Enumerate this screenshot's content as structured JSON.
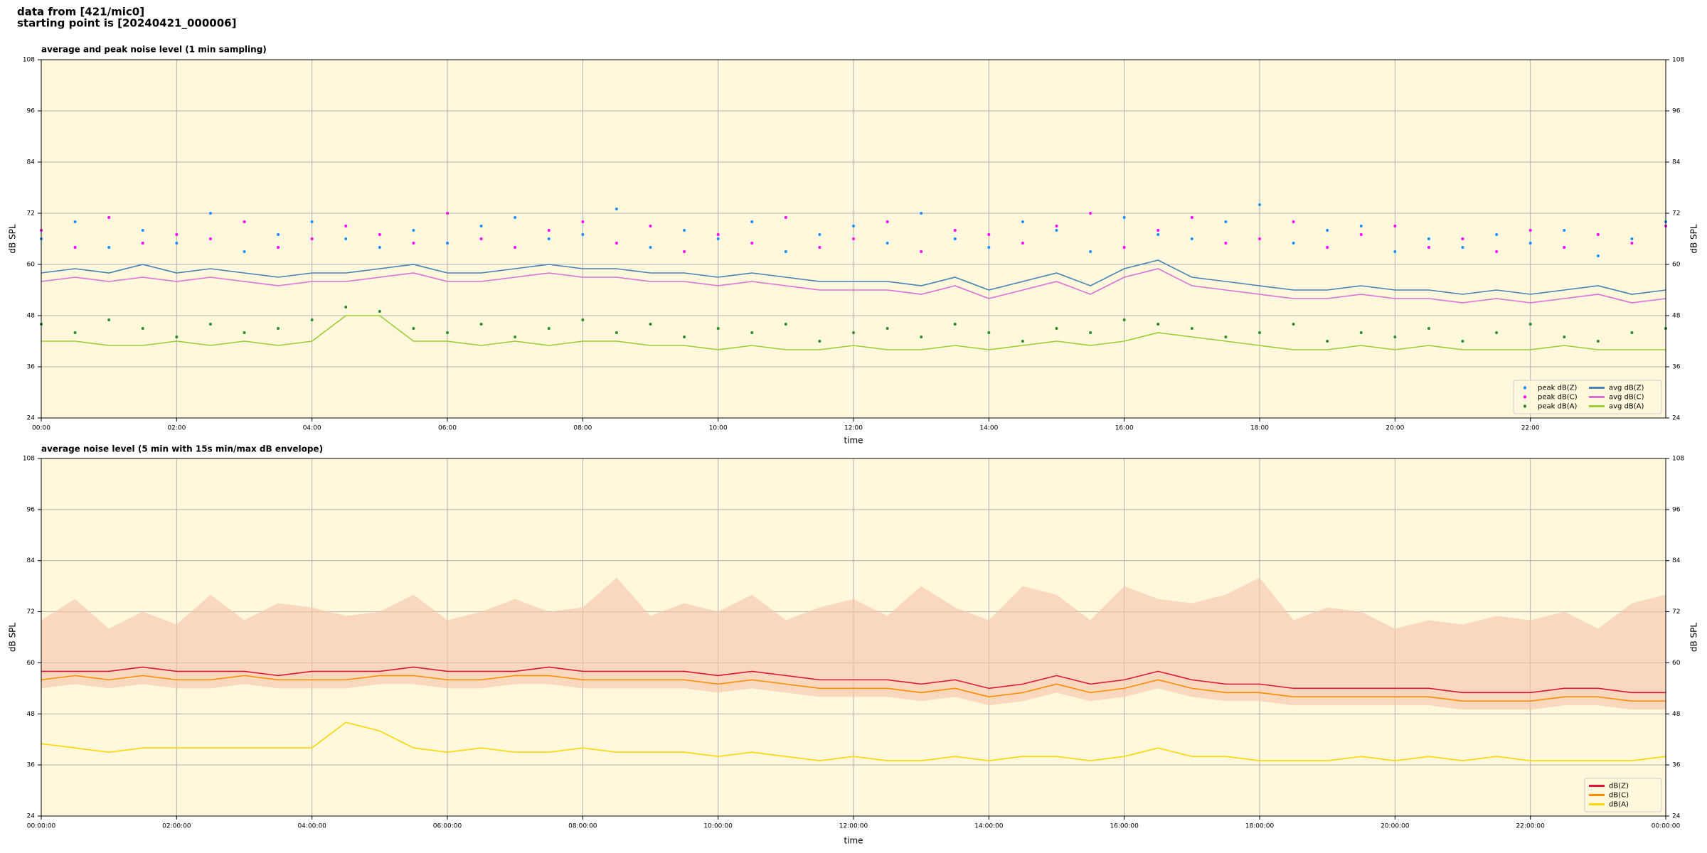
{
  "header": {
    "title": "data from [421/mic0]",
    "subtitle": "starting point is [20240421_000006]"
  },
  "chart_data": [
    {
      "type": "line",
      "title": "average and peak noise level (1 min sampling)",
      "x_label": "time",
      "y_label": "dB SPL",
      "x": [
        0,
        0.5,
        1,
        1.5,
        2,
        2.5,
        3,
        3.5,
        4,
        4.5,
        5,
        5.5,
        6,
        6.5,
        7,
        7.5,
        8,
        8.5,
        9,
        9.5,
        10,
        10.5,
        11,
        11.5,
        12,
        12.5,
        13,
        13.5,
        14,
        14.5,
        15,
        15.5,
        16,
        16.5,
        17,
        17.5,
        18,
        18.5,
        19,
        19.5,
        20,
        20.5,
        21,
        21.5,
        22,
        22.5,
        23,
        23.5,
        24
      ],
      "xlim": [
        0,
        24
      ],
      "xticks": [
        {
          "value": 0,
          "label": "00:00"
        },
        {
          "value": 2,
          "label": "02:00"
        },
        {
          "value": 4,
          "label": "04:00"
        },
        {
          "value": 6,
          "label": "06:00"
        },
        {
          "value": 8,
          "label": "08:00"
        },
        {
          "value": 10,
          "label": "10:00"
        },
        {
          "value": 12,
          "label": "12:00"
        },
        {
          "value": 14,
          "label": "14:00"
        },
        {
          "value": 16,
          "label": "16:00"
        },
        {
          "value": 18,
          "label": "18:00"
        },
        {
          "value": 20,
          "label": "20:00"
        },
        {
          "value": 22,
          "label": "22:00"
        }
      ],
      "ylim": [
        24,
        108
      ],
      "yticks": [
        24,
        36,
        48,
        60,
        72,
        84,
        96,
        108
      ],
      "grid": true,
      "legend": "lower right",
      "legend_columns": 2,
      "series": [
        {
          "name": "peak dB(Z)",
          "color": "#1e90ff",
          "kind": "scatter",
          "values": [
            66,
            70,
            64,
            68,
            65,
            72,
            63,
            67,
            70,
            66,
            64,
            68,
            65,
            69,
            71,
            66,
            67,
            73,
            64,
            68,
            66,
            70,
            63,
            67,
            69,
            65,
            72,
            66,
            64,
            70,
            68,
            63,
            71,
            67,
            66,
            70,
            74,
            65,
            68,
            69,
            63,
            66,
            64,
            67,
            65,
            68,
            62,
            66,
            70
          ]
        },
        {
          "name": "peak dB(C)",
          "color": "#ff00ff",
          "kind": "scatter",
          "values": [
            68,
            64,
            71,
            65,
            67,
            66,
            70,
            64,
            66,
            69,
            67,
            65,
            72,
            66,
            64,
            68,
            70,
            65,
            69,
            63,
            67,
            65,
            71,
            64,
            66,
            70,
            63,
            68,
            67,
            65,
            69,
            72,
            64,
            68,
            71,
            65,
            66,
            70,
            64,
            67,
            69,
            64,
            66,
            63,
            68,
            64,
            67,
            65,
            69
          ]
        },
        {
          "name": "peak dB(A)",
          "color": "#2e8b2e",
          "kind": "scatter",
          "values": [
            46,
            44,
            47,
            45,
            43,
            46,
            44,
            45,
            47,
            50,
            49,
            45,
            44,
            46,
            43,
            45,
            47,
            44,
            46,
            43,
            45,
            44,
            46,
            42,
            44,
            45,
            43,
            46,
            44,
            42,
            45,
            44,
            47,
            46,
            45,
            43,
            44,
            46,
            42,
            44,
            43,
            45,
            42,
            44,
            46,
            43,
            42,
            44,
            45
          ]
        },
        {
          "name": "avg dB(Z)",
          "color": "#4682b4",
          "kind": "line",
          "values": [
            58,
            59,
            58,
            60,
            58,
            59,
            58,
            57,
            58,
            58,
            59,
            60,
            58,
            58,
            59,
            60,
            59,
            59,
            58,
            58,
            57,
            58,
            57,
            56,
            56,
            56,
            55,
            57,
            54,
            56,
            58,
            55,
            59,
            61,
            57,
            56,
            55,
            54,
            54,
            55,
            54,
            54,
            53,
            54,
            53,
            54,
            55,
            53,
            54
          ]
        },
        {
          "name": "avg dB(C)",
          "color": "#da70d6",
          "kind": "line",
          "values": [
            56,
            57,
            56,
            57,
            56,
            57,
            56,
            55,
            56,
            56,
            57,
            58,
            56,
            56,
            57,
            58,
            57,
            57,
            56,
            56,
            55,
            56,
            55,
            54,
            54,
            54,
            53,
            55,
            52,
            54,
            56,
            53,
            57,
            59,
            55,
            54,
            53,
            52,
            52,
            53,
            52,
            52,
            51,
            52,
            51,
            52,
            53,
            51,
            52
          ]
        },
        {
          "name": "avg dB(A)",
          "color": "#9acd32",
          "kind": "line",
          "values": [
            42,
            42,
            41,
            41,
            42,
            41,
            42,
            41,
            42,
            48,
            48,
            42,
            42,
            41,
            42,
            41,
            42,
            42,
            41,
            41,
            40,
            41,
            40,
            40,
            41,
            40,
            40,
            41,
            40,
            41,
            42,
            41,
            42,
            44,
            43,
            42,
            41,
            40,
            40,
            41,
            40,
            41,
            40,
            40,
            40,
            41,
            40,
            40,
            40
          ]
        }
      ]
    },
    {
      "type": "line",
      "title": "average noise level (5 min with 15s min/max dB envelope)",
      "x_label": "time",
      "y_label": "dB SPL",
      "x": [
        0,
        0.5,
        1,
        1.5,
        2,
        2.5,
        3,
        3.5,
        4,
        4.5,
        5,
        5.5,
        6,
        6.5,
        7,
        7.5,
        8,
        8.5,
        9,
        9.5,
        10,
        10.5,
        11,
        11.5,
        12,
        12.5,
        13,
        13.5,
        14,
        14.5,
        15,
        15.5,
        16,
        16.5,
        17,
        17.5,
        18,
        18.5,
        19,
        19.5,
        20,
        20.5,
        21,
        21.5,
        22,
        22.5,
        23,
        23.5,
        24
      ],
      "xlim": [
        0,
        24
      ],
      "xticks": [
        {
          "value": 0,
          "label": "00:00:00"
        },
        {
          "value": 2,
          "label": "02:00:00"
        },
        {
          "value": 4,
          "label": "04:00:00"
        },
        {
          "value": 6,
          "label": "06:00:00"
        },
        {
          "value": 8,
          "label": "08:00:00"
        },
        {
          "value": 10,
          "label": "10:00:00"
        },
        {
          "value": 12,
          "label": "12:00:00"
        },
        {
          "value": 14,
          "label": "14:00:00"
        },
        {
          "value": 16,
          "label": "16:00:00"
        },
        {
          "value": 18,
          "label": "18:00:00"
        },
        {
          "value": 20,
          "label": "20:00:00"
        },
        {
          "value": 22,
          "label": "22:00:00"
        },
        {
          "value": 24,
          "label": "00:00:00"
        }
      ],
      "ylim": [
        24,
        108
      ],
      "yticks": [
        24,
        36,
        48,
        60,
        72,
        84,
        96,
        108
      ],
      "grid": true,
      "legend": "lower right",
      "legend_columns": 1,
      "envelope": {
        "color": "#f6c3aa",
        "low": [
          54,
          55,
          54,
          55,
          54,
          54,
          55,
          54,
          54,
          54,
          55,
          55,
          54,
          54,
          55,
          55,
          54,
          54,
          54,
          54,
          53,
          54,
          53,
          52,
          52,
          52,
          51,
          52,
          50,
          51,
          53,
          51,
          52,
          54,
          52,
          51,
          51,
          50,
          50,
          50,
          50,
          50,
          49,
          49,
          49,
          50,
          50,
          49,
          49
        ],
        "high": [
          70,
          75,
          68,
          72,
          69,
          76,
          70,
          74,
          73,
          71,
          72,
          76,
          70,
          72,
          75,
          72,
          73,
          80,
          71,
          74,
          72,
          76,
          70,
          73,
          75,
          71,
          78,
          73,
          70,
          78,
          76,
          70,
          78,
          75,
          74,
          76,
          80,
          70,
          73,
          72,
          68,
          70,
          69,
          71,
          70,
          72,
          68,
          74,
          76
        ]
      },
      "series": [
        {
          "name": "dB(Z)",
          "color": "#dc143c",
          "kind": "line",
          "values": [
            58,
            58,
            58,
            59,
            58,
            58,
            58,
            57,
            58,
            58,
            58,
            59,
            58,
            58,
            58,
            59,
            58,
            58,
            58,
            58,
            57,
            58,
            57,
            56,
            56,
            56,
            55,
            56,
            54,
            55,
            57,
            55,
            56,
            58,
            56,
            55,
            55,
            54,
            54,
            54,
            54,
            54,
            53,
            53,
            53,
            54,
            54,
            53,
            53
          ]
        },
        {
          "name": "dB(C)",
          "color": "#ff8c00",
          "kind": "line",
          "values": [
            56,
            57,
            56,
            57,
            56,
            56,
            57,
            56,
            56,
            56,
            57,
            57,
            56,
            56,
            57,
            57,
            56,
            56,
            56,
            56,
            55,
            56,
            55,
            54,
            54,
            54,
            53,
            54,
            52,
            53,
            55,
            53,
            54,
            56,
            54,
            53,
            53,
            52,
            52,
            52,
            52,
            52,
            51,
            51,
            51,
            52,
            52,
            51,
            51
          ]
        },
        {
          "name": "dB(A)",
          "color": "#ffd700",
          "kind": "line",
          "values": [
            41,
            40,
            39,
            40,
            40,
            40,
            40,
            40,
            40,
            46,
            44,
            40,
            39,
            40,
            39,
            39,
            40,
            39,
            39,
            39,
            38,
            39,
            38,
            37,
            38,
            37,
            37,
            38,
            37,
            38,
            38,
            37,
            38,
            40,
            38,
            38,
            37,
            37,
            37,
            38,
            37,
            38,
            37,
            38,
            37,
            37,
            37,
            37,
            38
          ]
        }
      ]
    }
  ]
}
